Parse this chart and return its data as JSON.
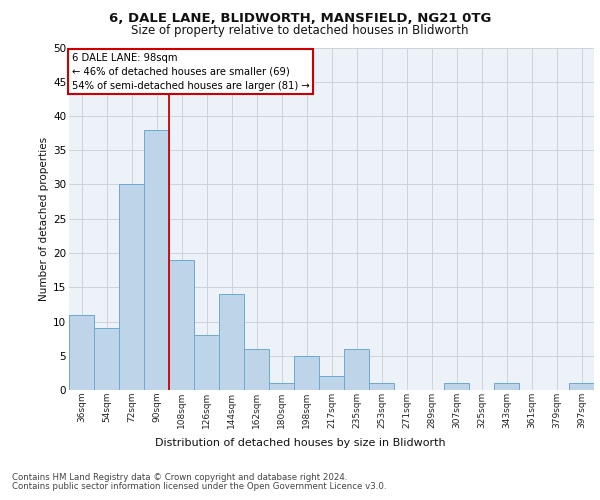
{
  "title1": "6, DALE LANE, BLIDWORTH, MANSFIELD, NG21 0TG",
  "title2": "Size of property relative to detached houses in Blidworth",
  "xlabel": "Distribution of detached houses by size in Blidworth",
  "ylabel": "Number of detached properties",
  "bar_labels": [
    "36sqm",
    "54sqm",
    "72sqm",
    "90sqm",
    "108sqm",
    "126sqm",
    "144sqm",
    "162sqm",
    "180sqm",
    "198sqm",
    "217sqm",
    "235sqm",
    "253sqm",
    "271sqm",
    "289sqm",
    "307sqm",
    "325sqm",
    "343sqm",
    "361sqm",
    "379sqm",
    "397sqm"
  ],
  "bar_values": [
    11,
    9,
    30,
    38,
    19,
    8,
    14,
    6,
    1,
    5,
    2,
    6,
    1,
    0,
    0,
    1,
    0,
    1,
    0,
    0,
    1
  ],
  "bar_color": "#bdd4e9",
  "bar_edge_color": "#6aaad4",
  "ylim": [
    0,
    50
  ],
  "yticks": [
    0,
    5,
    10,
    15,
    20,
    25,
    30,
    35,
    40,
    45,
    50
  ],
  "property_label": "6 DALE LANE: 98sqm",
  "annotation_line1": "← 46% of detached houses are smaller (69)",
  "annotation_line2": "54% of semi-detached houses are larger (81) →",
  "annotation_box_color": "#ffffff",
  "annotation_box_edge": "#cc0000",
  "red_line_x": 3.5,
  "footer1": "Contains HM Land Registry data © Crown copyright and database right 2024.",
  "footer2": "Contains public sector information licensed under the Open Government Licence v3.0.",
  "background_color": "#edf1f8"
}
